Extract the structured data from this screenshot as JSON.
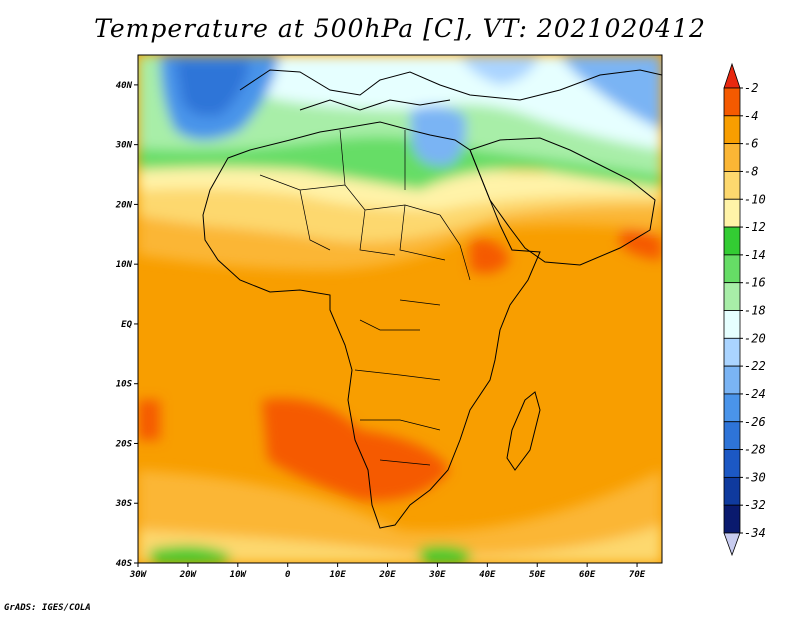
{
  "title": "Temperature at 500hPa [C], VT: 2021020412",
  "footer": "GrADS: IGES/COLA",
  "map": {
    "lon_range": [
      -30,
      75
    ],
    "lat_range": [
      -40,
      45
    ],
    "lon_ticks": [
      {
        "value": -30,
        "label": "30W"
      },
      {
        "value": -20,
        "label": "20W"
      },
      {
        "value": -10,
        "label": "10W"
      },
      {
        "value": 0,
        "label": "0"
      },
      {
        "value": 10,
        "label": "10E"
      },
      {
        "value": 20,
        "label": "20E"
      },
      {
        "value": 30,
        "label": "30E"
      },
      {
        "value": 40,
        "label": "40E"
      },
      {
        "value": 50,
        "label": "50E"
      },
      {
        "value": 60,
        "label": "60E"
      },
      {
        "value": 70,
        "label": "70E"
      }
    ],
    "lat_ticks": [
      {
        "value": 40,
        "label": "40N"
      },
      {
        "value": 30,
        "label": "30N"
      },
      {
        "value": 20,
        "label": "20N"
      },
      {
        "value": 10,
        "label": "10N"
      },
      {
        "value": 0,
        "label": "EQ"
      },
      {
        "value": -10,
        "label": "10S"
      },
      {
        "value": -20,
        "label": "20S"
      },
      {
        "value": -30,
        "label": "30S"
      },
      {
        "value": -40,
        "label": "40S"
      }
    ]
  },
  "colorbar": {
    "labels": [
      "-2",
      "-4",
      "-6",
      "-8",
      "-10",
      "-12",
      "-14",
      "-16",
      "-18",
      "-20",
      "-22",
      "-24",
      "-26",
      "-28",
      "-30",
      "-32",
      "-34"
    ],
    "colors": [
      "#f02810",
      "#f55a00",
      "#f89e00",
      "#fbb635",
      "#fdd86e",
      "#fff3a8",
      "#33cc33",
      "#66dd66",
      "#a8eea8",
      "#e6ffff",
      "#aad4ff",
      "#7ab4f4",
      "#4a94ea",
      "#2e74d8",
      "#1c58c4",
      "#0f3a9e",
      "#0a1a6e"
    ],
    "top_color": "#e82810",
    "bottom_color": "#c8ccf0"
  }
}
